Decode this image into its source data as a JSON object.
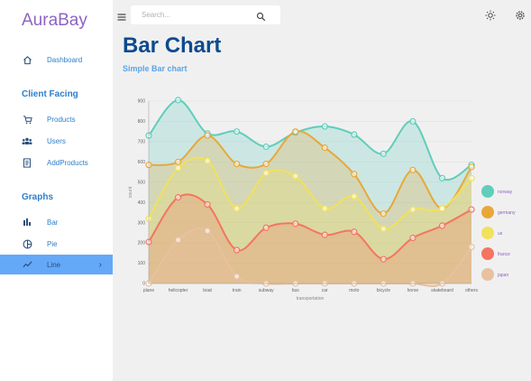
{
  "brand": "AuraBay",
  "sidebar": {
    "dashboard": "Dashboard",
    "sections": {
      "client": "Client Facing",
      "graphs": "Graphs"
    },
    "client_items": [
      "Products",
      "Users",
      "AddProducts"
    ],
    "graph_items": [
      "Bar",
      "Pie",
      "Line"
    ],
    "active": "Line"
  },
  "search": {
    "placeholder": "Search..."
  },
  "page": {
    "title": "Bar Chart",
    "subtitle": "Simple Bar chart"
  },
  "icons": [
    "menu-icon",
    "search-icon",
    "sun-icon",
    "gear-icon",
    "home-icon",
    "cart-icon",
    "users-icon",
    "receipt-icon",
    "bar-chart-icon",
    "pie-chart-icon",
    "line-chart-icon",
    "chevron-right-icon"
  ],
  "chart_data": {
    "type": "area",
    "stacked": false,
    "curve": "smooth",
    "categories": [
      "plane",
      "helicopter",
      "boat",
      "train",
      "subway",
      "bus",
      "car",
      "moto",
      "bicycle",
      "horse",
      "skateboard",
      "others"
    ],
    "xlabel": "transportation",
    "ylabel": "count",
    "ylim": [
      0,
      900
    ],
    "yticks": [
      0,
      100,
      200,
      300,
      400,
      500,
      600,
      700,
      800,
      900
    ],
    "grid": true,
    "legend_position": "right",
    "series": [
      {
        "name": "norway",
        "color": "#61cdbb",
        "values": [
          730,
          905,
          740,
          750,
          675,
          745,
          775,
          735,
          640,
          800,
          520,
          585
        ]
      },
      {
        "name": "germany",
        "color": "#e8a838",
        "values": [
          585,
          600,
          730,
          590,
          590,
          750,
          670,
          540,
          345,
          560,
          370,
          575
        ]
      },
      {
        "name": "us",
        "color": "#f1e15b",
        "values": [
          320,
          570,
          605,
          370,
          545,
          530,
          370,
          430,
          270,
          365,
          370,
          520
        ]
      },
      {
        "name": "france",
        "color": "#f47560",
        "values": [
          205,
          425,
          390,
          165,
          275,
          295,
          240,
          255,
          120,
          225,
          285,
          365
        ]
      },
      {
        "name": "japan",
        "color": "#e8c1a0",
        "values": [
          0,
          215,
          260,
          35,
          0,
          0,
          0,
          0,
          0,
          0,
          0,
          180
        ]
      }
    ]
  }
}
